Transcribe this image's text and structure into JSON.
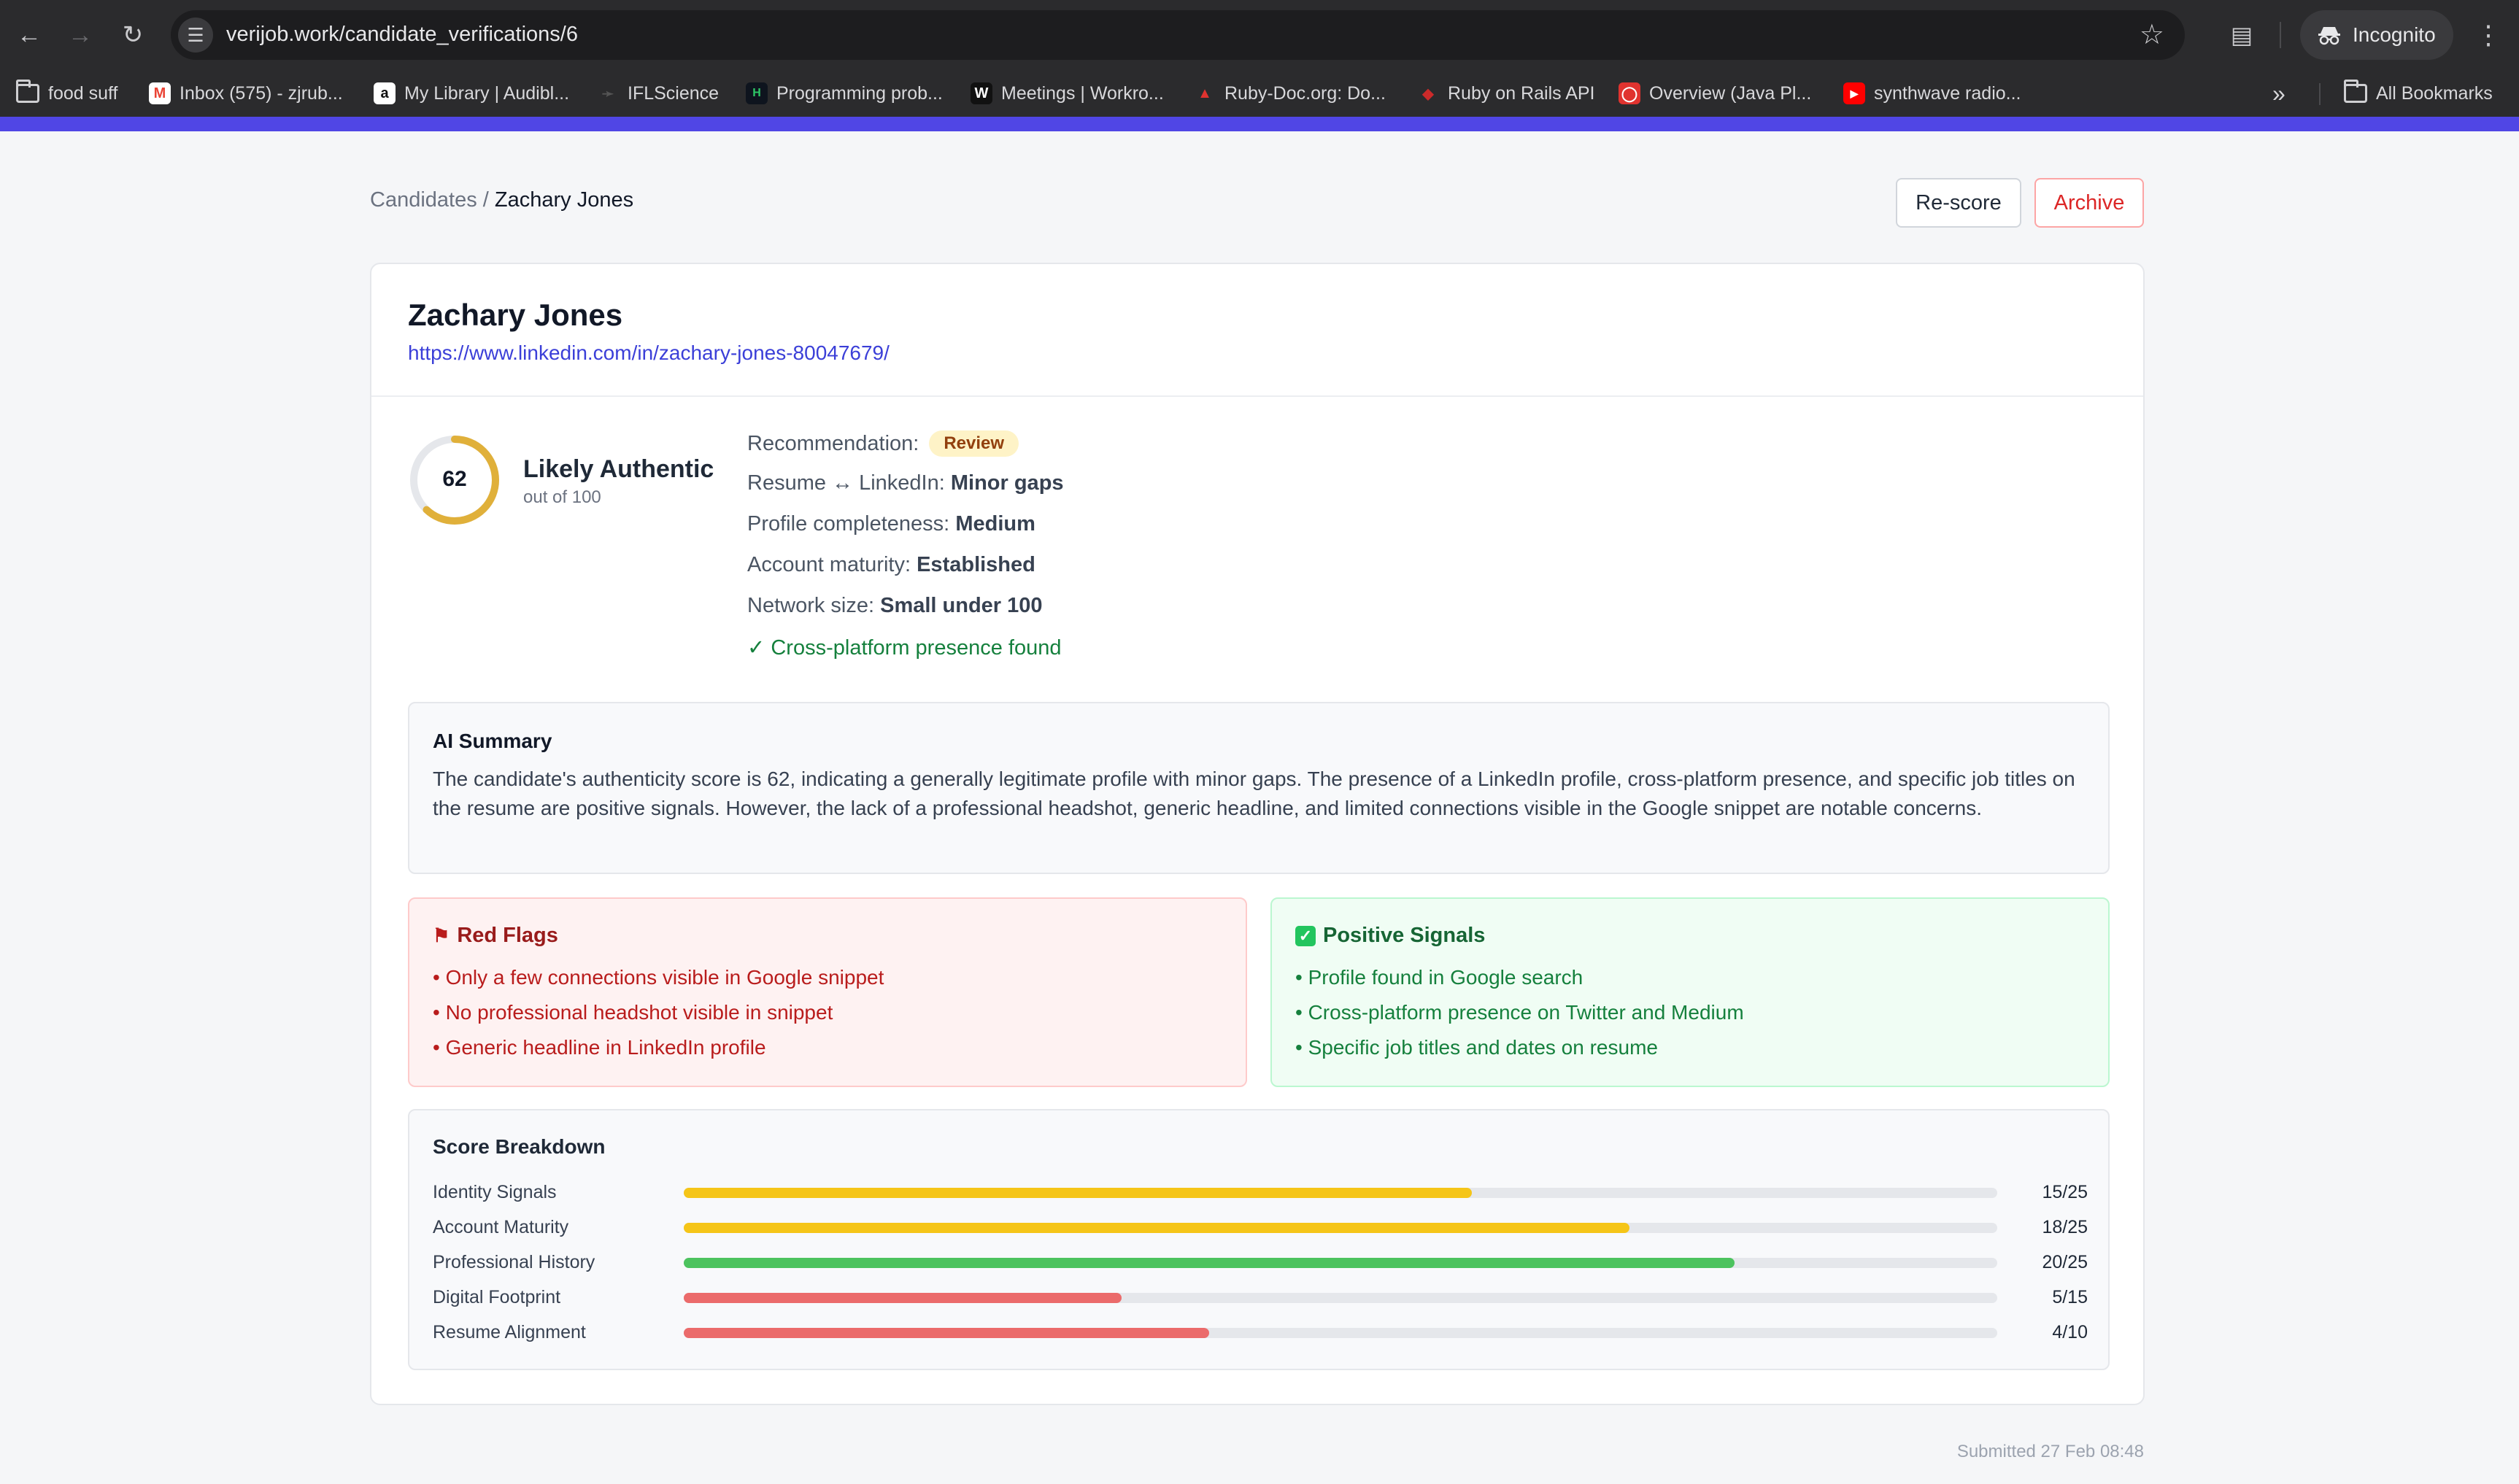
{
  "browser": {
    "url": "verijob.work/candidate_verifications/6",
    "profile_label": "Incognito",
    "bookmarks": [
      {
        "label": "food suff",
        "icon": "folder-icon"
      },
      {
        "label": "Inbox (575) - zjrub...",
        "icon": "gmail-icon"
      },
      {
        "label": "My Library | Audibl...",
        "icon": "amazon-icon"
      },
      {
        "label": "IFLScience",
        "icon": "iflscience-icon"
      },
      {
        "label": "Programming prob...",
        "icon": "hackerrank-icon"
      },
      {
        "label": "Meetings | Workro...",
        "icon": "workroom-icon"
      },
      {
        "label": "Ruby-Doc.org: Do...",
        "icon": "ruby-doc-icon"
      },
      {
        "label": "Ruby on Rails API",
        "icon": "rails-icon"
      },
      {
        "label": "Overview (Java Pl...",
        "icon": "oracle-icon"
      },
      {
        "label": "synthwave radio...",
        "icon": "youtube-icon"
      }
    ],
    "all_bookmarks_label": "All Bookmarks"
  },
  "page": {
    "breadcrumb_root": "Candidates",
    "breadcrumb_sep": " / ",
    "breadcrumb_current": "Zachary Jones",
    "rescore_label": "Re-score",
    "archive_label": "Archive",
    "accent_color": "#5046e5"
  },
  "candidate": {
    "name": "Zachary Jones",
    "linkedin_url": "https://www.linkedin.com/in/zachary-jones-80047679/",
    "score": 62,
    "score_max": 100,
    "verdict": "Likely Authentic",
    "verdict_sub": "out of 100",
    "gauge_color": "#e0b03a"
  },
  "facts": {
    "recommendation_label": "Recommendation:",
    "recommendation_value": "Review",
    "resume_label": "Resume ↔ LinkedIn: ",
    "resume_value": "Minor gaps",
    "completeness_label": "Profile completeness: ",
    "completeness_value": "Medium",
    "maturity_label": "Account maturity: ",
    "maturity_value": "Established",
    "network_label": "Network size: ",
    "network_value": "Small under 100",
    "cross_platform": "✓ Cross-platform presence found"
  },
  "summary": {
    "title": "AI Summary",
    "text": "The candidate's authenticity score is 62, indicating a generally legitimate profile with minor gaps. The presence of a LinkedIn profile, cross-platform presence, and specific job titles on the resume are positive signals. However, the lack of a professional headshot, generic headline, and limited connections visible in the Google snippet are notable concerns."
  },
  "red_flags": {
    "title": "Red Flags",
    "items": [
      "• Only a few connections visible in Google snippet",
      "• No professional headshot visible in snippet",
      "• Generic headline in LinkedIn profile"
    ]
  },
  "positive_signals": {
    "title": "Positive Signals",
    "items": [
      "• Profile found in Google search",
      "• Cross-platform presence on Twitter and Medium",
      "• Specific job titles and dates on resume"
    ]
  },
  "breakdown": {
    "title": "Score Breakdown",
    "rows": [
      {
        "label": "Identity Signals",
        "score": 15,
        "max": 25,
        "display": "15/25",
        "color": "#f5c518"
      },
      {
        "label": "Account Maturity",
        "score": 18,
        "max": 25,
        "display": "18/25",
        "color": "#f5c518"
      },
      {
        "label": "Professional History",
        "score": 20,
        "max": 25,
        "display": "20/25",
        "color": "#4cc35e"
      },
      {
        "label": "Digital Footprint",
        "score": 5,
        "max": 15,
        "display": "5/15",
        "color": "#eb6b6b"
      },
      {
        "label": "Resume Alignment",
        "score": 4,
        "max": 10,
        "display": "4/10",
        "color": "#eb6b6b"
      }
    ]
  },
  "footer": {
    "submitted": "Submitted 27 Feb 08:48"
  }
}
